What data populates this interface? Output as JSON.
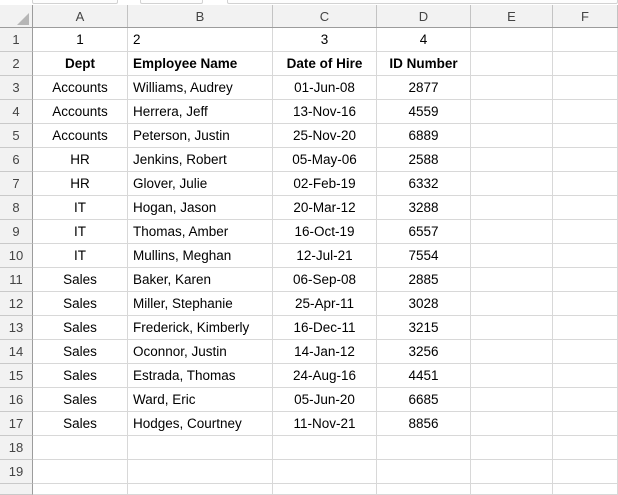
{
  "sheet": {
    "column_headers": [
      "A",
      "B",
      "C",
      "D",
      "E",
      "F"
    ],
    "row_numbers": [
      "1",
      "2",
      "3",
      "4",
      "5",
      "6",
      "7",
      "8",
      "9",
      "10",
      "11",
      "12",
      "13",
      "14",
      "15",
      "16",
      "17",
      "18",
      "19"
    ],
    "cells": {
      "row1": [
        "1",
        "2",
        "3",
        "4"
      ],
      "header_row": [
        "Dept",
        "Employee Name",
        "Date of Hire",
        "ID Number"
      ],
      "records": [
        {
          "dept": "Accounts",
          "employee_name": "Williams, Audrey",
          "date_of_hire": "01-Jun-08",
          "id_number": "2877"
        },
        {
          "dept": "Accounts",
          "employee_name": "Herrera, Jeff",
          "date_of_hire": "13-Nov-16",
          "id_number": "4559"
        },
        {
          "dept": "Accounts",
          "employee_name": "Peterson, Justin",
          "date_of_hire": "25-Nov-20",
          "id_number": "6889"
        },
        {
          "dept": "HR",
          "employee_name": "Jenkins, Robert",
          "date_of_hire": "05-May-06",
          "id_number": "2588"
        },
        {
          "dept": "HR",
          "employee_name": "Glover, Julie",
          "date_of_hire": "02-Feb-19",
          "id_number": "6332"
        },
        {
          "dept": "IT",
          "employee_name": "Hogan, Jason",
          "date_of_hire": "20-Mar-12",
          "id_number": "3288"
        },
        {
          "dept": "IT",
          "employee_name": "Thomas, Amber",
          "date_of_hire": "16-Oct-19",
          "id_number": "6557"
        },
        {
          "dept": "IT",
          "employee_name": "Mullins, Meghan",
          "date_of_hire": "12-Jul-21",
          "id_number": "7554"
        },
        {
          "dept": "Sales",
          "employee_name": "Baker, Karen",
          "date_of_hire": "06-Sep-08",
          "id_number": "2885"
        },
        {
          "dept": "Sales",
          "employee_name": "Miller, Stephanie",
          "date_of_hire": "25-Apr-11",
          "id_number": "3028"
        },
        {
          "dept": "Sales",
          "employee_name": "Frederick, Kimberly",
          "date_of_hire": "16-Dec-11",
          "id_number": "3215"
        },
        {
          "dept": "Sales",
          "employee_name": "Oconnor, Justin",
          "date_of_hire": "14-Jan-12",
          "id_number": "3256"
        },
        {
          "dept": "Sales",
          "employee_name": "Estrada, Thomas",
          "date_of_hire": "24-Aug-16",
          "id_number": "4451"
        },
        {
          "dept": "Sales",
          "employee_name": "Ward, Eric",
          "date_of_hire": "05-Jun-20",
          "id_number": "6685"
        },
        {
          "dept": "Sales",
          "employee_name": "Hodges, Courtney",
          "date_of_hire": "11-Nov-21",
          "id_number": "8856"
        }
      ]
    }
  },
  "colors": {
    "header_bg": "#f2f2f2",
    "header_text": "#444444",
    "cell_text": "#000000",
    "gridline": "#d8d8d8",
    "header_separator": "#c3c3c3",
    "header_strong_border": "#9c9c9c",
    "select_all_triangle": "#b6b6b6"
  }
}
